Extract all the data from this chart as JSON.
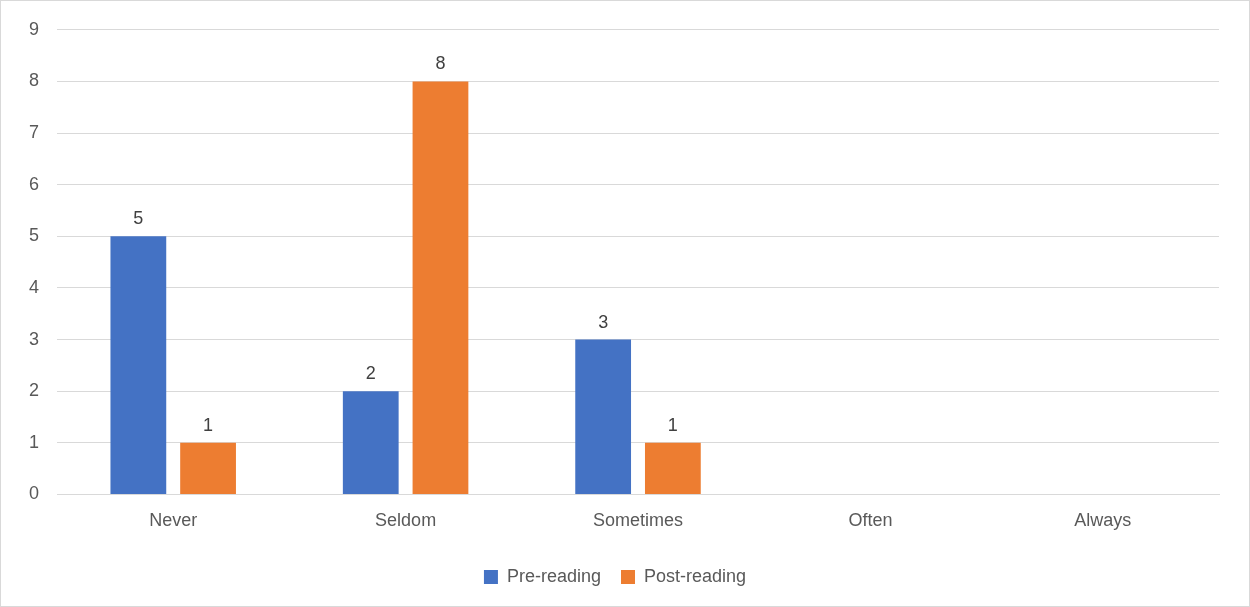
{
  "chart_data": {
    "type": "bar",
    "categories": [
      "Never",
      "Seldom",
      "Sometimes",
      "Often",
      "Always"
    ],
    "series": [
      {
        "name": "Pre-reading",
        "color": "#4472c4",
        "values": [
          5,
          2,
          3,
          null,
          null
        ],
        "value_labels": [
          "5",
          "2",
          "3",
          null,
          null
        ]
      },
      {
        "name": "Post-reading",
        "color": "#ed7d31",
        "values": [
          1,
          8,
          1,
          null,
          null
        ],
        "value_labels": [
          "1",
          "8",
          "1",
          null,
          null
        ]
      }
    ],
    "ylim": [
      0,
      9
    ],
    "yticks": [
      0,
      1,
      2,
      3,
      4,
      5,
      6,
      7,
      8,
      9
    ],
    "grid": "y",
    "legend": "bottom"
  }
}
